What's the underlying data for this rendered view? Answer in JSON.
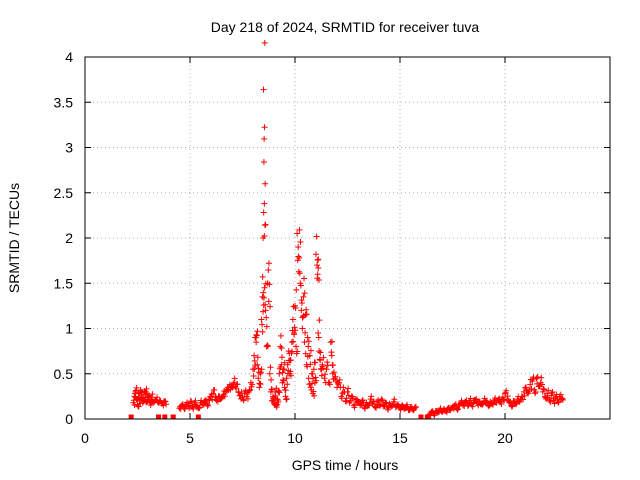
{
  "chart_data": {
    "type": "scatter",
    "title": "Day 218 of 2024, SRMTID for receiver tuva",
    "xlabel": "GPS time / hours",
    "ylabel": "SRMTID / TECUs",
    "xlim": [
      0,
      25
    ],
    "ylim": [
      0,
      4
    ],
    "xticks": [
      0,
      5,
      10,
      15,
      20
    ],
    "yticks": [
      0,
      0.5,
      1,
      1.5,
      2,
      2.5,
      3,
      3.5,
      4
    ],
    "grid": true,
    "marker": "+",
    "series_color": "#ff0000",
    "zero_points_x": [
      2.2,
      3.5,
      3.8,
      4.2,
      5.4,
      16.0,
      16.3
    ],
    "points": [
      [
        2.3,
        0.18
      ],
      [
        2.35,
        0.25
      ],
      [
        2.4,
        0.3
      ],
      [
        2.45,
        0.22
      ],
      [
        2.5,
        0.16
      ],
      [
        2.55,
        0.28
      ],
      [
        2.6,
        0.2
      ],
      [
        2.65,
        0.32
      ],
      [
        2.7,
        0.24
      ],
      [
        2.75,
        0.18
      ],
      [
        2.8,
        0.27
      ],
      [
        2.85,
        0.21
      ],
      [
        2.9,
        0.3
      ],
      [
        2.95,
        0.19
      ],
      [
        3.0,
        0.25
      ],
      [
        3.05,
        0.22
      ],
      [
        3.1,
        0.18
      ],
      [
        3.15,
        0.24
      ],
      [
        3.2,
        0.2
      ],
      [
        3.3,
        0.19
      ],
      [
        3.4,
        0.21
      ],
      [
        3.5,
        0.18
      ],
      [
        3.6,
        0.2
      ],
      [
        3.7,
        0.17
      ],
      [
        3.8,
        0.19
      ],
      [
        4.5,
        0.12
      ],
      [
        4.6,
        0.15
      ],
      [
        4.7,
        0.13
      ],
      [
        4.8,
        0.16
      ],
      [
        4.9,
        0.14
      ],
      [
        5.0,
        0.17
      ],
      [
        5.1,
        0.13
      ],
      [
        5.2,
        0.18
      ],
      [
        5.3,
        0.15
      ],
      [
        5.4,
        0.12
      ],
      [
        5.5,
        0.18
      ],
      [
        5.6,
        0.16
      ],
      [
        5.7,
        0.2
      ],
      [
        5.8,
        0.17
      ],
      [
        5.9,
        0.22
      ],
      [
        6.0,
        0.25
      ],
      [
        6.1,
        0.28
      ],
      [
        6.2,
        0.24
      ],
      [
        6.3,
        0.22
      ],
      [
        6.4,
        0.25
      ],
      [
        6.5,
        0.23
      ],
      [
        6.6,
        0.27
      ],
      [
        6.7,
        0.3
      ],
      [
        6.8,
        0.35
      ],
      [
        6.9,
        0.38
      ],
      [
        7.0,
        0.36
      ],
      [
        7.1,
        0.4
      ],
      [
        7.2,
        0.34
      ],
      [
        7.3,
        0.3
      ],
      [
        7.4,
        0.26
      ],
      [
        7.5,
        0.24
      ],
      [
        7.6,
        0.28
      ],
      [
        7.7,
        0.25
      ],
      [
        7.8,
        0.3
      ],
      [
        7.9,
        0.4
      ],
      [
        8.0,
        0.55
      ],
      [
        8.05,
        0.7
      ],
      [
        8.1,
        0.9
      ],
      [
        8.15,
        0.85
      ],
      [
        8.2,
        0.6
      ],
      [
        8.25,
        0.45
      ],
      [
        8.3,
        0.35
      ],
      [
        8.35,
        0.5
      ],
      [
        8.4,
        1.1
      ],
      [
        8.45,
        1.35
      ],
      [
        8.5,
        3.64
      ],
      [
        8.52,
        2.84
      ],
      [
        8.54,
        2.38
      ],
      [
        8.48,
        2.0
      ],
      [
        8.46,
        1.57
      ],
      [
        8.55,
        1.45
      ],
      [
        8.6,
        1.2
      ],
      [
        8.65,
        0.8
      ],
      [
        8.7,
        1.5
      ],
      [
        8.75,
        1.3
      ],
      [
        8.8,
        0.5
      ],
      [
        8.85,
        0.3
      ],
      [
        8.9,
        0.2
      ],
      [
        8.95,
        0.25
      ],
      [
        9.0,
        0.18
      ],
      [
        9.05,
        0.3
      ],
      [
        9.1,
        0.15
      ],
      [
        9.15,
        0.22
      ],
      [
        9.2,
        0.3
      ],
      [
        9.25,
        0.5
      ],
      [
        9.3,
        0.8
      ],
      [
        9.35,
        0.6
      ],
      [
        9.4,
        0.4
      ],
      [
        9.45,
        0.55
      ],
      [
        9.5,
        0.35
      ],
      [
        9.55,
        0.25
      ],
      [
        9.6,
        0.45
      ],
      [
        9.65,
        0.6
      ],
      [
        9.7,
        0.75
      ],
      [
        9.75,
        0.5
      ],
      [
        9.8,
        0.65
      ],
      [
        9.85,
        0.85
      ],
      [
        9.9,
        1.1
      ],
      [
        9.95,
        0.95
      ],
      [
        10.0,
        1.25
      ],
      [
        10.05,
        0.8
      ],
      [
        10.1,
        2.05
      ],
      [
        10.15,
        1.9
      ],
      [
        10.2,
        1.78
      ],
      [
        10.25,
        1.5
      ],
      [
        10.3,
        1.2
      ],
      [
        10.35,
        1.0
      ],
      [
        10.4,
        1.35
      ],
      [
        10.45,
        0.85
      ],
      [
        10.5,
        1.15
      ],
      [
        10.55,
        0.6
      ],
      [
        10.6,
        0.9
      ],
      [
        10.65,
        0.45
      ],
      [
        10.7,
        0.7
      ],
      [
        10.75,
        0.35
      ],
      [
        10.8,
        0.5
      ],
      [
        10.85,
        0.28
      ],
      [
        10.9,
        0.55
      ],
      [
        10.95,
        0.4
      ],
      [
        11.0,
        1.82
      ],
      [
        11.05,
        1.7
      ],
      [
        11.08,
        1.6
      ],
      [
        11.1,
        0.95
      ],
      [
        11.15,
        0.75
      ],
      [
        11.2,
        0.65
      ],
      [
        11.25,
        0.55
      ],
      [
        11.3,
        0.6
      ],
      [
        11.4,
        0.45
      ],
      [
        11.5,
        0.55
      ],
      [
        11.6,
        0.4
      ],
      [
        11.7,
        0.85
      ],
      [
        11.75,
        0.7
      ],
      [
        11.8,
        0.5
      ],
      [
        11.9,
        0.45
      ],
      [
        12.0,
        0.35
      ],
      [
        12.1,
        0.4
      ],
      [
        12.2,
        0.25
      ],
      [
        12.3,
        0.35
      ],
      [
        12.4,
        0.2
      ],
      [
        12.5,
        0.3
      ],
      [
        12.6,
        0.18
      ],
      [
        12.7,
        0.25
      ],
      [
        12.8,
        0.15
      ],
      [
        12.9,
        0.22
      ],
      [
        13.0,
        0.18
      ],
      [
        13.1,
        0.15
      ],
      [
        13.2,
        0.2
      ],
      [
        13.3,
        0.13
      ],
      [
        13.4,
        0.18
      ],
      [
        13.5,
        0.15
      ],
      [
        13.6,
        0.22
      ],
      [
        13.7,
        0.17
      ],
      [
        13.8,
        0.14
      ],
      [
        13.9,
        0.19
      ],
      [
        14.0,
        0.16
      ],
      [
        14.1,
        0.2
      ],
      [
        14.2,
        0.14
      ],
      [
        14.3,
        0.18
      ],
      [
        14.4,
        0.12
      ],
      [
        14.5,
        0.17
      ],
      [
        14.6,
        0.14
      ],
      [
        14.7,
        0.19
      ],
      [
        14.8,
        0.13
      ],
      [
        14.9,
        0.16
      ],
      [
        15.0,
        0.12
      ],
      [
        15.1,
        0.15
      ],
      [
        15.2,
        0.11
      ],
      [
        15.3,
        0.14
      ],
      [
        15.4,
        0.1
      ],
      [
        15.5,
        0.13
      ],
      [
        15.6,
        0.11
      ],
      [
        15.7,
        0.12
      ],
      [
        16.4,
        0.05
      ],
      [
        16.5,
        0.08
      ],
      [
        16.6,
        0.06
      ],
      [
        16.7,
        0.09
      ],
      [
        16.8,
        0.07
      ],
      [
        16.9,
        0.1
      ],
      [
        17.0,
        0.08
      ],
      [
        17.1,
        0.11
      ],
      [
        17.2,
        0.09
      ],
      [
        17.3,
        0.12
      ],
      [
        17.4,
        0.1
      ],
      [
        17.5,
        0.13
      ],
      [
        17.6,
        0.15
      ],
      [
        17.7,
        0.12
      ],
      [
        17.8,
        0.16
      ],
      [
        17.9,
        0.18
      ],
      [
        18.0,
        0.15
      ],
      [
        18.1,
        0.19
      ],
      [
        18.2,
        0.17
      ],
      [
        18.3,
        0.2
      ],
      [
        18.4,
        0.16
      ],
      [
        18.5,
        0.18
      ],
      [
        18.6,
        0.21
      ],
      [
        18.7,
        0.17
      ],
      [
        18.8,
        0.19
      ],
      [
        18.9,
        0.16
      ],
      [
        19.0,
        0.2
      ],
      [
        19.1,
        0.18
      ],
      [
        19.2,
        0.15
      ],
      [
        19.3,
        0.19
      ],
      [
        19.4,
        0.17
      ],
      [
        19.5,
        0.21
      ],
      [
        19.6,
        0.18
      ],
      [
        19.7,
        0.22
      ],
      [
        19.8,
        0.19
      ],
      [
        19.9,
        0.24
      ],
      [
        20.0,
        0.28
      ],
      [
        20.1,
        0.22
      ],
      [
        20.2,
        0.18
      ],
      [
        20.3,
        0.15
      ],
      [
        20.4,
        0.2
      ],
      [
        20.5,
        0.17
      ],
      [
        20.6,
        0.22
      ],
      [
        20.7,
        0.19
      ],
      [
        20.8,
        0.25
      ],
      [
        20.9,
        0.3
      ],
      [
        21.0,
        0.35
      ],
      [
        21.1,
        0.28
      ],
      [
        21.2,
        0.38
      ],
      [
        21.3,
        0.42
      ],
      [
        21.4,
        0.32
      ],
      [
        21.5,
        0.45
      ],
      [
        21.6,
        0.36
      ],
      [
        21.7,
        0.4
      ],
      [
        21.8,
        0.3
      ],
      [
        21.9,
        0.25
      ],
      [
        22.0,
        0.28
      ],
      [
        22.1,
        0.22
      ],
      [
        22.2,
        0.26
      ],
      [
        22.3,
        0.2
      ],
      [
        22.4,
        0.24
      ],
      [
        22.5,
        0.21
      ],
      [
        22.6,
        0.25
      ],
      [
        22.7,
        0.22
      ]
    ]
  }
}
